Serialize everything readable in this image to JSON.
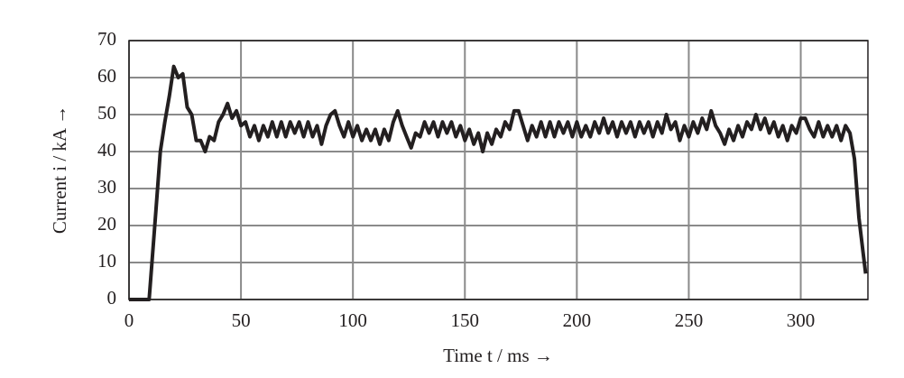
{
  "chart_data": {
    "type": "line",
    "x_label": "Time t / ms →",
    "y_label": "Current i / kA →",
    "x": [
      0,
      8,
      9,
      12,
      14,
      16,
      18,
      20,
      22,
      24,
      26,
      28,
      30,
      32,
      34,
      36,
      38,
      40,
      42,
      44,
      46,
      48,
      50,
      52,
      54,
      56,
      58,
      60,
      62,
      64,
      66,
      68,
      70,
      72,
      74,
      76,
      78,
      80,
      82,
      84,
      86,
      88,
      90,
      92,
      94,
      96,
      98,
      100,
      102,
      104,
      106,
      108,
      110,
      112,
      114,
      116,
      118,
      120,
      122,
      124,
      126,
      128,
      130,
      132,
      134,
      136,
      138,
      140,
      142,
      144,
      146,
      148,
      150,
      152,
      154,
      156,
      158,
      160,
      162,
      164,
      166,
      168,
      170,
      172,
      174,
      176,
      178,
      180,
      182,
      184,
      186,
      188,
      190,
      192,
      194,
      196,
      198,
      200,
      202,
      204,
      206,
      208,
      210,
      212,
      214,
      216,
      218,
      220,
      222,
      224,
      226,
      228,
      230,
      232,
      234,
      236,
      238,
      240,
      242,
      244,
      246,
      248,
      250,
      252,
      254,
      256,
      258,
      260,
      262,
      264,
      266,
      268,
      270,
      272,
      274,
      276,
      278,
      280,
      282,
      284,
      286,
      288,
      290,
      292,
      294,
      296,
      298,
      300,
      302,
      304,
      306,
      308,
      310,
      312,
      314,
      316,
      318,
      320,
      322,
      324,
      326,
      328,
      329
    ],
    "values": [
      0,
      0,
      0,
      24,
      40,
      48,
      55,
      63,
      60,
      61,
      52,
      50,
      43,
      43,
      40,
      44,
      43,
      48,
      50,
      53,
      49,
      51,
      47,
      48,
      44,
      47,
      43,
      47,
      44,
      48,
      44,
      48,
      44,
      48,
      45,
      48,
      44,
      48,
      44,
      47,
      42,
      47,
      50,
      51,
      47,
      44,
      48,
      44,
      47,
      43,
      46,
      43,
      46,
      42,
      46,
      43,
      48,
      51,
      47,
      44,
      41,
      45,
      44,
      48,
      45,
      48,
      44,
      48,
      45,
      48,
      44,
      47,
      43,
      46,
      42,
      45,
      40,
      45,
      42,
      46,
      44,
      48,
      46,
      51,
      51,
      47,
      43,
      47,
      44,
      48,
      44,
      48,
      44,
      48,
      45,
      48,
      44,
      48,
      44,
      47,
      44,
      48,
      45,
      49,
      45,
      48,
      44,
      48,
      45,
      48,
      44,
      48,
      45,
      48,
      44,
      48,
      45,
      50,
      46,
      48,
      43,
      47,
      44,
      48,
      45,
      49,
      46,
      51,
      47,
      45,
      42,
      46,
      43,
      47,
      44,
      48,
      46,
      50,
      46,
      49,
      45,
      48,
      44,
      47,
      43,
      47,
      45,
      49,
      49,
      46,
      44,
      48,
      44,
      47,
      44,
      47,
      43,
      47,
      45,
      38,
      22,
      12,
      7
    ],
    "color": "#231f20",
    "xlim": [
      0,
      330
    ],
    "xticks": [
      0,
      50,
      100,
      150,
      200,
      250,
      300
    ],
    "ylim": [
      0,
      70
    ],
    "yticks": [
      0,
      10,
      20,
      30,
      40,
      50,
      60,
      70
    ],
    "grid": true
  }
}
